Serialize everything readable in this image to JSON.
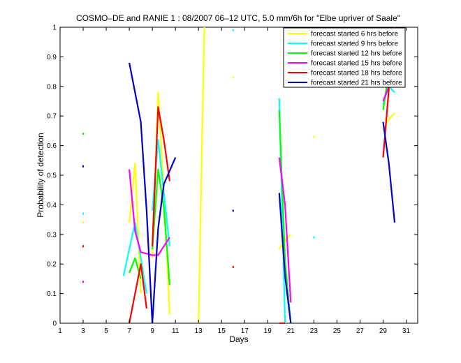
{
  "chart_data": {
    "type": "line",
    "title": "COSMO–DE and RANIE 1 : 08/2007 06–12 UTC, 5.0 mm/6h for \"Elbe upriver of Saale\"",
    "xlabel": "Days",
    "ylabel": "Probability of detection",
    "xlim": [
      1,
      32
    ],
    "ylim": [
      0,
      1
    ],
    "xticks": [
      1,
      3,
      5,
      7,
      9,
      11,
      13,
      15,
      17,
      19,
      21,
      23,
      25,
      27,
      29,
      31
    ],
    "yticks": [
      0,
      0.1,
      0.2,
      0.3,
      0.4,
      0.5,
      0.6,
      0.7,
      0.8,
      0.9,
      1
    ],
    "xtick_labels": [
      "1",
      "3",
      "5",
      "7",
      "9",
      "11",
      "13",
      "15",
      "17",
      "19",
      "21",
      "23",
      "25",
      "27",
      "29",
      "31"
    ],
    "ytick_labels": [
      "0",
      "0.1",
      "0.2",
      "0.3",
      "0.4",
      "0.5",
      "0.6",
      "0.7",
      "0.8",
      "0.9",
      "1"
    ],
    "legend_position": "top-right",
    "grid": false,
    "series": [
      {
        "name": "forecast started 6 hrs before",
        "color": "#ffff00",
        "points": [
          [
            3,
            0.34
          ],
          [
            7,
            0.34
          ],
          [
            7.5,
            0.54
          ],
          [
            8,
            0.1
          ],
          [
            9,
            0.22
          ],
          [
            9.5,
            0.78
          ],
          [
            10,
            0.45
          ],
          [
            10.5,
            0.03
          ],
          [
            13,
            0.0
          ],
          [
            13.5,
            1.0
          ],
          [
            16,
            0.83
          ],
          [
            20,
            0.25
          ],
          [
            20.5,
            0.28
          ],
          [
            21,
            0.3
          ],
          [
            23,
            0.63
          ],
          [
            29,
            0.65
          ],
          [
            29.5,
            0.69
          ],
          [
            30,
            0.71
          ]
        ],
        "segments": [
          [
            [
              7,
              0.34
            ],
            [
              7.5,
              0.54
            ],
            [
              8,
              0.1
            ]
          ],
          [
            [
              9,
              0.22
            ],
            [
              9.5,
              0.78
            ],
            [
              10,
              0.45
            ],
            [
              10.5,
              0.03
            ]
          ],
          [
            [
              13,
              0.0
            ],
            [
              13.5,
              1.0
            ]
          ],
          [
            [
              20,
              0.25
            ],
            [
              20.5,
              0.28
            ],
            [
              21,
              0.3
            ]
          ],
          [
            [
              29,
              0.65
            ],
            [
              29.5,
              0.69
            ],
            [
              30,
              0.71
            ]
          ]
        ],
        "markers": [
          [
            3,
            0.34
          ],
          [
            16,
            0.83
          ],
          [
            23,
            0.63
          ]
        ]
      },
      {
        "name": "forecast started 9 hrs before",
        "color": "#00ffff",
        "points": [
          [
            3,
            0.37
          ],
          [
            6.5,
            0.16
          ],
          [
            7.5,
            0.34
          ],
          [
            8.5,
            0.1
          ],
          [
            9,
            0.38
          ],
          [
            9.5,
            0.62
          ],
          [
            10,
            0.44
          ],
          [
            10.5,
            0.26
          ],
          [
            16,
            0.99
          ],
          [
            16,
            0.38
          ],
          [
            20,
            0.76
          ],
          [
            20.5,
            0.0
          ],
          [
            23,
            0.29
          ],
          [
            29,
            0.74
          ],
          [
            29.5,
            0.8
          ],
          [
            30,
            0.78
          ]
        ],
        "segments": [
          [
            [
              6.5,
              0.16
            ],
            [
              7.5,
              0.34
            ],
            [
              8.5,
              0.1
            ]
          ],
          [
            [
              9,
              0.38
            ],
            [
              9.5,
              0.62
            ],
            [
              10,
              0.44
            ],
            [
              10.5,
              0.26
            ]
          ],
          [
            [
              20,
              0.76
            ],
            [
              20.5,
              0.0
            ]
          ],
          [
            [
              29,
              0.74
            ],
            [
              29.5,
              0.8
            ],
            [
              30,
              0.78
            ]
          ]
        ],
        "markers": [
          [
            3,
            0.37
          ],
          [
            16,
            0.99
          ],
          [
            23,
            0.29
          ]
        ]
      },
      {
        "name": "forecast started 12 hrs before",
        "color": "#00ff00",
        "points": [
          [
            3,
            0.64
          ],
          [
            7,
            0.17
          ],
          [
            7.5,
            0.22
          ],
          [
            8,
            0.15
          ],
          [
            9,
            0.25
          ],
          [
            9.5,
            0.52
          ],
          [
            10,
            0.39
          ],
          [
            10.5,
            0.13
          ],
          [
            20,
            0.72
          ],
          [
            20.5,
            0.21
          ],
          [
            21,
            0.0
          ],
          [
            29,
            0.72
          ],
          [
            29.5,
            0.85
          ],
          [
            30,
            0.9
          ]
        ],
        "segments": [
          [
            [
              7,
              0.17
            ],
            [
              7.5,
              0.22
            ],
            [
              8,
              0.15
            ]
          ],
          [
            [
              9,
              0.25
            ],
            [
              9.5,
              0.52
            ],
            [
              10,
              0.39
            ],
            [
              10.5,
              0.13
            ]
          ],
          [
            [
              20,
              0.72
            ],
            [
              20.5,
              0.21
            ],
            [
              21,
              0.0
            ]
          ],
          [
            [
              29,
              0.72
            ],
            [
              29.5,
              0.85
            ],
            [
              30,
              0.9
            ]
          ]
        ],
        "markers": [
          [
            3,
            0.64
          ]
        ]
      },
      {
        "name": "forecast started 15 hrs before",
        "color": "#ff00ff",
        "points": [
          [
            3,
            0.14
          ],
          [
            7,
            0.52
          ],
          [
            7.5,
            0.31
          ],
          [
            8,
            0.24
          ],
          [
            9,
            0.23
          ],
          [
            9.5,
            0.23
          ],
          [
            10,
            0.26
          ],
          [
            10.5,
            0.29
          ],
          [
            20,
            0.56
          ],
          [
            20.5,
            0.4
          ],
          [
            21,
            0.07
          ],
          [
            29,
            0.75
          ],
          [
            29.5,
            0.8
          ],
          [
            30,
            0.86
          ]
        ],
        "segments": [
          [
            [
              7,
              0.52
            ],
            [
              7.5,
              0.31
            ],
            [
              8,
              0.24
            ],
            [
              9,
              0.23
            ],
            [
              9.5,
              0.23
            ],
            [
              10,
              0.26
            ],
            [
              10.5,
              0.29
            ]
          ],
          [
            [
              20,
              0.56
            ],
            [
              20.5,
              0.4
            ],
            [
              21,
              0.07
            ]
          ],
          [
            [
              29,
              0.75
            ],
            [
              29.5,
              0.8
            ],
            [
              30,
              0.86
            ]
          ]
        ],
        "markers": [
          [
            3,
            0.14
          ]
        ]
      },
      {
        "name": "forecast started 18 hrs before",
        "color": "#ff0000",
        "points": [
          [
            3,
            0.26
          ],
          [
            7,
            0.0
          ],
          [
            8,
            0.2
          ],
          [
            8.5,
            0.05
          ],
          [
            9,
            0.26
          ],
          [
            9.5,
            0.73
          ],
          [
            10,
            0.62
          ],
          [
            10.5,
            0.48
          ],
          [
            16,
            0.19
          ],
          [
            20,
            0.0
          ],
          [
            20.5,
            0.0
          ],
          [
            29,
            0.56
          ],
          [
            29.5,
            0.79
          ],
          [
            30,
            1.0
          ]
        ],
        "segments": [
          [
            [
              7,
              0.0
            ],
            [
              8,
              0.2
            ],
            [
              8.5,
              0.05
            ]
          ],
          [
            [
              9,
              0.26
            ],
            [
              9.5,
              0.73
            ],
            [
              10,
              0.62
            ],
            [
              10.5,
              0.48
            ]
          ],
          [
            [
              20,
              0.0
            ],
            [
              20.5,
              0.0
            ]
          ],
          [
            [
              29,
              0.56
            ],
            [
              29.5,
              0.79
            ],
            [
              30,
              1.0
            ]
          ]
        ],
        "markers": [
          [
            3,
            0.26
          ],
          [
            16,
            0.19
          ]
        ]
      },
      {
        "name": "forecast started 21 hrs before",
        "color": "#0000cc",
        "points": [
          [
            3,
            0.53
          ],
          [
            7,
            0.88
          ],
          [
            8,
            0.68
          ],
          [
            8.5,
            0.38
          ],
          [
            9,
            0.0
          ],
          [
            9.5,
            0.32
          ],
          [
            10,
            0.47
          ],
          [
            11,
            0.56
          ],
          [
            16,
            0.38
          ],
          [
            20,
            0.44
          ],
          [
            20.5,
            0.16
          ],
          [
            21,
            0.0
          ],
          [
            29,
            0.68
          ],
          [
            29.5,
            0.54
          ],
          [
            30,
            0.34
          ]
        ],
        "segments": [
          [
            [
              7,
              0.88
            ],
            [
              8,
              0.68
            ],
            [
              8.5,
              0.38
            ],
            [
              9,
              0.0
            ]
          ],
          [
            [
              9,
              0.0
            ],
            [
              9.5,
              0.32
            ],
            [
              10,
              0.47
            ],
            [
              11,
              0.56
            ]
          ],
          [
            [
              20,
              0.44
            ],
            [
              20.5,
              0.16
            ],
            [
              21,
              0.0
            ]
          ],
          [
            [
              29,
              0.68
            ],
            [
              29.5,
              0.54
            ],
            [
              30,
              0.34
            ]
          ]
        ],
        "markers": [
          [
            3,
            0.53
          ],
          [
            16,
            0.38
          ]
        ]
      }
    ]
  }
}
